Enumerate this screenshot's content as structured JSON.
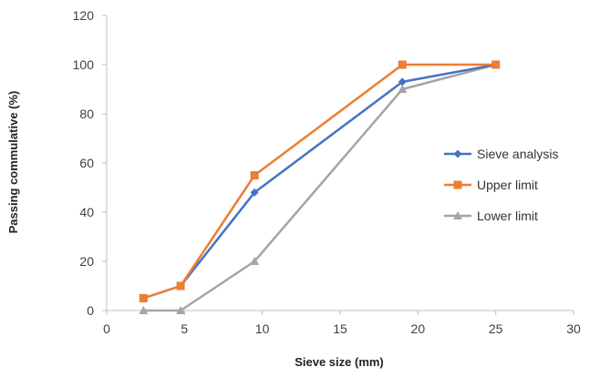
{
  "chart_data": {
    "type": "line",
    "title": "",
    "xlabel": "Sieve size (mm)",
    "ylabel": "Passing  commulative (%)",
    "xlim": [
      0,
      30
    ],
    "ylim": [
      0,
      120
    ],
    "xticks": [
      0,
      5,
      10,
      15,
      20,
      25,
      30
    ],
    "yticks": [
      0,
      20,
      40,
      60,
      80,
      100,
      120
    ],
    "grid": false,
    "legend_position": "right",
    "series": [
      {
        "name": "Sieve analysis",
        "color": "#4472C4",
        "marker": "diamond",
        "points": [
          [
            2.36,
            5
          ],
          [
            4.75,
            10
          ],
          [
            9.5,
            48
          ],
          [
            19,
            93
          ],
          [
            25,
            100
          ]
        ]
      },
      {
        "name": "Upper limit",
        "color": "#ED7D31",
        "marker": "square",
        "points": [
          [
            2.36,
            5
          ],
          [
            4.75,
            10
          ],
          [
            9.5,
            55
          ],
          [
            19,
            100
          ],
          [
            25,
            100
          ]
        ]
      },
      {
        "name": "Lower limit",
        "color": "#A5A5A5",
        "marker": "triangle",
        "points": [
          [
            2.36,
            0
          ],
          [
            4.75,
            0
          ],
          [
            9.5,
            20
          ],
          [
            19,
            90
          ],
          [
            25,
            100
          ]
        ]
      }
    ]
  }
}
